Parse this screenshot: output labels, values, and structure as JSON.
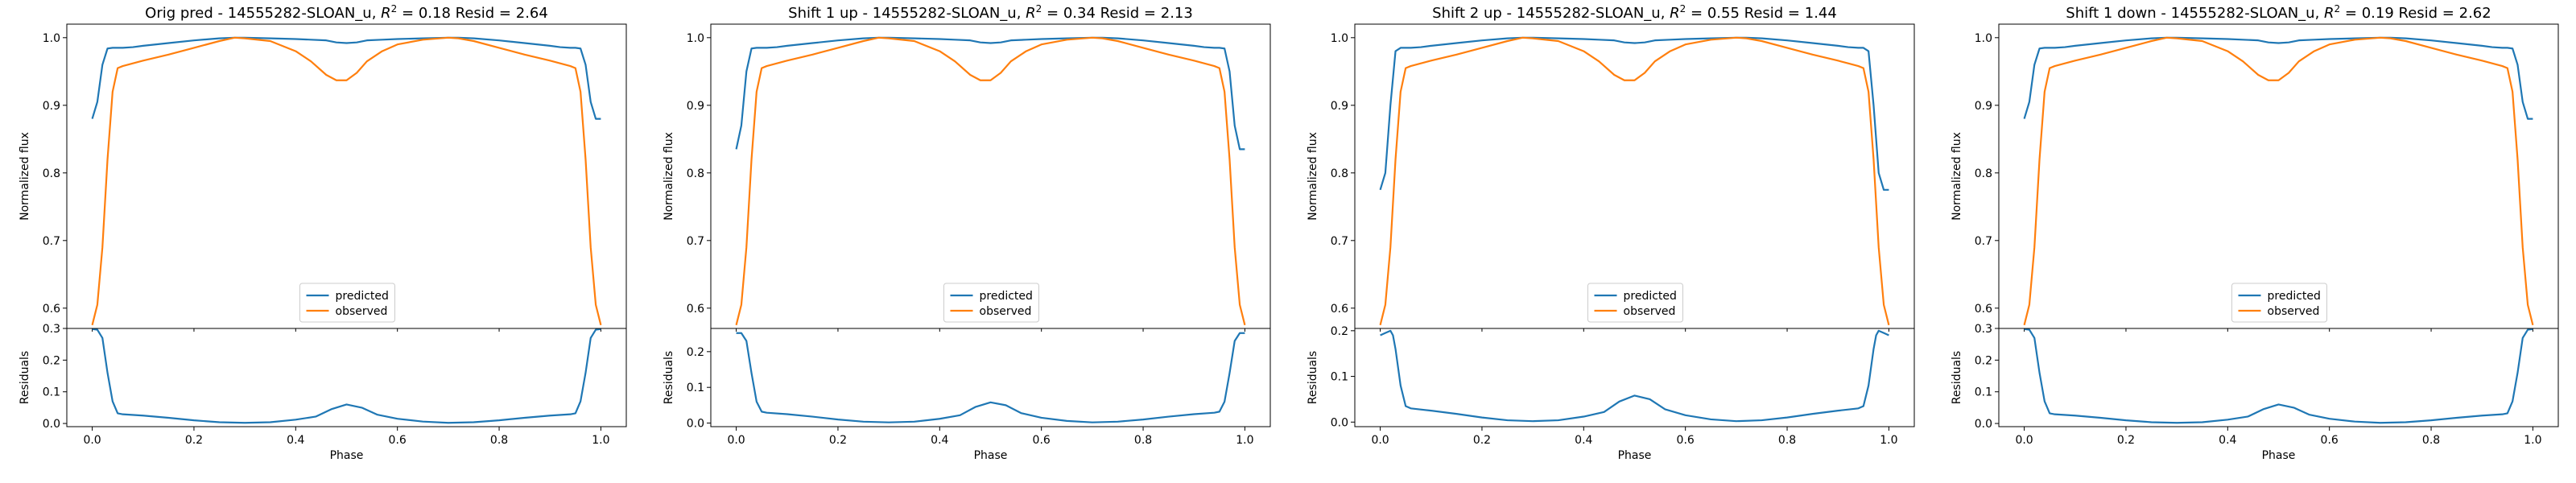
{
  "chart_data": [
    {
      "type": "line",
      "title": "Orig pred - 14555282-SLOAN_u, $R^2 = 0.18$ Resid = 2.64",
      "title_parts": {
        "pre": "Orig pred - 14555282-SLOAN_u, ",
        "r": "R",
        "sup": "2",
        "post": " = 0.18 Resid = 2.64"
      },
      "ylabel": "Normalized flux",
      "ylim": [
        0.57,
        1.02
      ],
      "yticks": [
        0.6,
        0.7,
        0.8,
        0.9,
        1.0
      ],
      "ytick_labels": [
        "0.6",
        "0.7",
        "0.8",
        "0.9",
        "1.0"
      ],
      "x": [
        0.0,
        0.01,
        0.02,
        0.03,
        0.04,
        0.05,
        0.06,
        0.08,
        0.1,
        0.15,
        0.2,
        0.25,
        0.28,
        0.3,
        0.35,
        0.4,
        0.43,
        0.46,
        0.48,
        0.5,
        0.52,
        0.54,
        0.57,
        0.6,
        0.65,
        0.7,
        0.72,
        0.75,
        0.8,
        0.85,
        0.9,
        0.92,
        0.94,
        0.95,
        0.96,
        0.97,
        0.98,
        0.99,
        1.0
      ],
      "series": [
        {
          "name": "predicted",
          "color": "#1f77b4",
          "values": [
            0.88,
            0.905,
            0.96,
            0.984,
            0.985,
            0.985,
            0.985,
            0.986,
            0.988,
            0.992,
            0.996,
            0.999,
            1.0,
            1.0,
            0.999,
            0.998,
            0.997,
            0.996,
            0.993,
            0.992,
            0.993,
            0.996,
            0.997,
            0.998,
            0.999,
            1.0,
            1.0,
            0.999,
            0.996,
            0.992,
            0.988,
            0.986,
            0.985,
            0.985,
            0.984,
            0.96,
            0.905,
            0.88,
            0.88
          ]
        },
        {
          "name": "observed",
          "color": "#ff7f0e",
          "values": [
            0.575,
            0.605,
            0.69,
            0.82,
            0.92,
            0.955,
            0.958,
            0.962,
            0.966,
            0.975,
            0.985,
            0.995,
            1.0,
            0.999,
            0.995,
            0.98,
            0.965,
            0.945,
            0.937,
            0.937,
            0.948,
            0.965,
            0.98,
            0.99,
            0.997,
            1.0,
            0.999,
            0.995,
            0.985,
            0.975,
            0.966,
            0.962,
            0.958,
            0.955,
            0.92,
            0.82,
            0.69,
            0.605,
            0.575
          ]
        }
      ],
      "legend_position": "lower center",
      "residuals": {
        "ylabel": "Residuals",
        "xlabel": "Phase",
        "ylim": [
          -0.01,
          0.3
        ],
        "yticks": [
          0.0,
          0.1,
          0.2,
          0.3
        ],
        "ytick_labels": [
          "0.0",
          "0.1",
          "0.2",
          "0.3"
        ],
        "xticks": [
          0.0,
          0.2,
          0.4,
          0.6,
          0.8,
          1.0
        ],
        "xtick_labels": [
          "0.0",
          "0.2",
          "0.4",
          "0.6",
          "0.8",
          "1.0"
        ],
        "color": "#1f77b4",
        "x": [
          0.0,
          0.01,
          0.02,
          0.03,
          0.04,
          0.05,
          0.06,
          0.1,
          0.15,
          0.2,
          0.25,
          0.3,
          0.35,
          0.4,
          0.44,
          0.47,
          0.5,
          0.53,
          0.56,
          0.6,
          0.65,
          0.7,
          0.75,
          0.8,
          0.85,
          0.9,
          0.94,
          0.95,
          0.96,
          0.97,
          0.98,
          0.99,
          1.0
        ],
        "values": [
          0.298,
          0.296,
          0.27,
          0.16,
          0.07,
          0.032,
          0.029,
          0.025,
          0.018,
          0.01,
          0.004,
          0.002,
          0.004,
          0.012,
          0.022,
          0.045,
          0.06,
          0.05,
          0.028,
          0.015,
          0.006,
          0.002,
          0.004,
          0.01,
          0.018,
          0.025,
          0.029,
          0.032,
          0.07,
          0.16,
          0.27,
          0.296,
          0.298
        ]
      }
    },
    {
      "type": "line",
      "title": "Shift 1 up - 14555282-SLOAN_u, $R^2 = 0.34$ Resid = 2.13",
      "title_parts": {
        "pre": "Shift 1 up - 14555282-SLOAN_u, ",
        "r": "R",
        "sup": "2",
        "post": " = 0.34 Resid = 2.13"
      },
      "ylabel": "Normalized flux",
      "ylim": [
        0.57,
        1.02
      ],
      "yticks": [
        0.6,
        0.7,
        0.8,
        0.9,
        1.0
      ],
      "ytick_labels": [
        "0.6",
        "0.7",
        "0.8",
        "0.9",
        "1.0"
      ],
      "x": [
        0.0,
        0.01,
        0.02,
        0.03,
        0.04,
        0.05,
        0.06,
        0.08,
        0.1,
        0.15,
        0.2,
        0.25,
        0.28,
        0.3,
        0.35,
        0.4,
        0.43,
        0.46,
        0.48,
        0.5,
        0.52,
        0.54,
        0.57,
        0.6,
        0.65,
        0.7,
        0.72,
        0.75,
        0.8,
        0.85,
        0.9,
        0.92,
        0.94,
        0.95,
        0.96,
        0.97,
        0.98,
        0.99,
        1.0
      ],
      "series": [
        {
          "name": "predicted",
          "color": "#1f77b4",
          "values": [
            0.835,
            0.87,
            0.95,
            0.984,
            0.985,
            0.985,
            0.985,
            0.986,
            0.988,
            0.992,
            0.996,
            0.999,
            1.0,
            1.0,
            0.999,
            0.998,
            0.997,
            0.996,
            0.993,
            0.992,
            0.993,
            0.996,
            0.997,
            0.998,
            0.999,
            1.0,
            1.0,
            0.999,
            0.996,
            0.992,
            0.988,
            0.986,
            0.985,
            0.985,
            0.984,
            0.95,
            0.87,
            0.835,
            0.835
          ]
        },
        {
          "name": "observed",
          "color": "#ff7f0e",
          "values": [
            0.575,
            0.605,
            0.69,
            0.82,
            0.92,
            0.955,
            0.958,
            0.962,
            0.966,
            0.975,
            0.985,
            0.995,
            1.0,
            0.999,
            0.995,
            0.98,
            0.965,
            0.945,
            0.937,
            0.937,
            0.948,
            0.965,
            0.98,
            0.99,
            0.997,
            1.0,
            0.999,
            0.995,
            0.985,
            0.975,
            0.966,
            0.962,
            0.958,
            0.955,
            0.92,
            0.82,
            0.69,
            0.605,
            0.575
          ]
        }
      ],
      "legend_position": "lower center",
      "residuals": {
        "ylabel": "Residuals",
        "xlabel": "Phase",
        "ylim": [
          -0.01,
          0.265
        ],
        "yticks": [
          0.0,
          0.1,
          0.2
        ],
        "ytick_labels": [
          "0.0",
          "0.1",
          "0.2"
        ],
        "xticks": [
          0.0,
          0.2,
          0.4,
          0.6,
          0.8,
          1.0
        ],
        "xtick_labels": [
          "0.0",
          "0.2",
          "0.4",
          "0.6",
          "0.8",
          "1.0"
        ],
        "color": "#1f77b4",
        "x": [
          0.0,
          0.01,
          0.02,
          0.03,
          0.04,
          0.05,
          0.06,
          0.1,
          0.15,
          0.2,
          0.25,
          0.3,
          0.35,
          0.4,
          0.44,
          0.47,
          0.5,
          0.53,
          0.56,
          0.6,
          0.65,
          0.7,
          0.75,
          0.8,
          0.85,
          0.9,
          0.94,
          0.95,
          0.96,
          0.97,
          0.98,
          0.99,
          1.0
        ],
        "values": [
          0.252,
          0.252,
          0.23,
          0.14,
          0.06,
          0.032,
          0.029,
          0.025,
          0.018,
          0.01,
          0.004,
          0.002,
          0.004,
          0.012,
          0.022,
          0.045,
          0.058,
          0.05,
          0.028,
          0.015,
          0.006,
          0.002,
          0.004,
          0.01,
          0.018,
          0.025,
          0.029,
          0.032,
          0.06,
          0.14,
          0.23,
          0.252,
          0.252
        ]
      }
    },
    {
      "type": "line",
      "title": "Shift 2 up - 14555282-SLOAN_u, $R^2 = 0.55$ Resid = 1.44",
      "title_parts": {
        "pre": "Shift 2 up - 14555282-SLOAN_u, ",
        "r": "R",
        "sup": "2",
        "post": " = 0.55 Resid = 1.44"
      },
      "ylabel": "Normalized flux",
      "ylim": [
        0.57,
        1.02
      ],
      "yticks": [
        0.6,
        0.7,
        0.8,
        0.9,
        1.0
      ],
      "ytick_labels": [
        "0.6",
        "0.7",
        "0.8",
        "0.9",
        "1.0"
      ],
      "x": [
        0.0,
        0.01,
        0.02,
        0.03,
        0.04,
        0.05,
        0.06,
        0.08,
        0.1,
        0.15,
        0.2,
        0.25,
        0.28,
        0.3,
        0.35,
        0.4,
        0.43,
        0.46,
        0.48,
        0.5,
        0.52,
        0.54,
        0.57,
        0.6,
        0.65,
        0.7,
        0.72,
        0.75,
        0.8,
        0.85,
        0.9,
        0.92,
        0.94,
        0.95,
        0.96,
        0.97,
        0.98,
        0.99,
        1.0
      ],
      "series": [
        {
          "name": "predicted",
          "color": "#1f77b4",
          "values": [
            0.775,
            0.8,
            0.9,
            0.98,
            0.985,
            0.985,
            0.985,
            0.986,
            0.988,
            0.992,
            0.996,
            0.999,
            1.0,
            1.0,
            0.999,
            0.998,
            0.997,
            0.996,
            0.993,
            0.992,
            0.993,
            0.996,
            0.997,
            0.998,
            0.999,
            1.0,
            1.0,
            0.999,
            0.996,
            0.992,
            0.988,
            0.986,
            0.985,
            0.985,
            0.98,
            0.9,
            0.8,
            0.775,
            0.775
          ]
        },
        {
          "name": "observed",
          "color": "#ff7f0e",
          "values": [
            0.575,
            0.605,
            0.69,
            0.82,
            0.92,
            0.955,
            0.958,
            0.962,
            0.966,
            0.975,
            0.985,
            0.995,
            1.0,
            0.999,
            0.995,
            0.98,
            0.965,
            0.945,
            0.937,
            0.937,
            0.948,
            0.965,
            0.98,
            0.99,
            0.997,
            1.0,
            0.999,
            0.995,
            0.985,
            0.975,
            0.966,
            0.962,
            0.958,
            0.955,
            0.92,
            0.82,
            0.69,
            0.605,
            0.575
          ]
        }
      ],
      "legend_position": "lower center",
      "residuals": {
        "ylabel": "Residuals",
        "xlabel": "Phase",
        "ylim": [
          -0.01,
          0.205
        ],
        "yticks": [
          0.0,
          0.1,
          0.2
        ],
        "ytick_labels": [
          "0.0",
          "0.1",
          "0.2"
        ],
        "xticks": [
          0.0,
          0.2,
          0.4,
          0.6,
          0.8,
          1.0
        ],
        "xtick_labels": [
          "0.0",
          "0.2",
          "0.4",
          "0.6",
          "0.8",
          "1.0"
        ],
        "color": "#1f77b4",
        "x": [
          0.0,
          0.01,
          0.02,
          0.025,
          0.03,
          0.04,
          0.05,
          0.06,
          0.1,
          0.15,
          0.2,
          0.25,
          0.3,
          0.35,
          0.4,
          0.44,
          0.47,
          0.5,
          0.53,
          0.56,
          0.6,
          0.65,
          0.7,
          0.75,
          0.8,
          0.85,
          0.9,
          0.94,
          0.95,
          0.96,
          0.97,
          0.975,
          0.98,
          0.99,
          1.0
        ],
        "values": [
          0.19,
          0.195,
          0.2,
          0.19,
          0.16,
          0.08,
          0.035,
          0.03,
          0.025,
          0.018,
          0.01,
          0.004,
          0.002,
          0.004,
          0.012,
          0.022,
          0.045,
          0.058,
          0.05,
          0.028,
          0.015,
          0.006,
          0.002,
          0.004,
          0.01,
          0.018,
          0.025,
          0.03,
          0.035,
          0.08,
          0.16,
          0.19,
          0.2,
          0.195,
          0.19
        ]
      }
    },
    {
      "type": "line",
      "title": "Shift 1 down - 14555282-SLOAN_u, $R^2 = 0.19$ Resid = 2.62",
      "title_parts": {
        "pre": "Shift 1 down - 14555282-SLOAN_u, ",
        "r": "R",
        "sup": "2",
        "post": " = 0.19 Resid = 2.62"
      },
      "ylabel": "Normalized flux",
      "ylim": [
        0.57,
        1.02
      ],
      "yticks": [
        0.6,
        0.7,
        0.8,
        0.9,
        1.0
      ],
      "ytick_labels": [
        "0.6",
        "0.7",
        "0.8",
        "0.9",
        "1.0"
      ],
      "x": [
        0.0,
        0.01,
        0.02,
        0.03,
        0.04,
        0.05,
        0.06,
        0.08,
        0.1,
        0.15,
        0.2,
        0.25,
        0.28,
        0.3,
        0.35,
        0.4,
        0.43,
        0.46,
        0.48,
        0.5,
        0.52,
        0.54,
        0.57,
        0.6,
        0.65,
        0.7,
        0.72,
        0.75,
        0.8,
        0.85,
        0.9,
        0.92,
        0.94,
        0.95,
        0.96,
        0.97,
        0.98,
        0.99,
        1.0
      ],
      "series": [
        {
          "name": "predicted",
          "color": "#1f77b4",
          "values": [
            0.88,
            0.905,
            0.96,
            0.984,
            0.985,
            0.985,
            0.985,
            0.986,
            0.988,
            0.992,
            0.996,
            0.999,
            1.0,
            1.0,
            0.999,
            0.998,
            0.997,
            0.996,
            0.993,
            0.992,
            0.993,
            0.996,
            0.997,
            0.998,
            0.999,
            1.0,
            1.0,
            0.999,
            0.996,
            0.992,
            0.988,
            0.986,
            0.985,
            0.985,
            0.984,
            0.96,
            0.905,
            0.88,
            0.88
          ]
        },
        {
          "name": "observed",
          "color": "#ff7f0e",
          "values": [
            0.575,
            0.605,
            0.69,
            0.82,
            0.92,
            0.955,
            0.958,
            0.962,
            0.966,
            0.975,
            0.985,
            0.995,
            1.0,
            0.999,
            0.995,
            0.98,
            0.965,
            0.945,
            0.937,
            0.937,
            0.948,
            0.965,
            0.98,
            0.99,
            0.997,
            1.0,
            0.999,
            0.995,
            0.985,
            0.975,
            0.966,
            0.962,
            0.958,
            0.955,
            0.92,
            0.82,
            0.69,
            0.605,
            0.575
          ]
        }
      ],
      "legend_position": "lower center",
      "residuals": {
        "ylabel": "Residuals",
        "xlabel": "Phase",
        "ylim": [
          -0.01,
          0.3
        ],
        "yticks": [
          0.0,
          0.1,
          0.2,
          0.3
        ],
        "ytick_labels": [
          "0.0",
          "0.1",
          "0.2",
          "0.3"
        ],
        "xticks": [
          0.0,
          0.2,
          0.4,
          0.6,
          0.8,
          1.0
        ],
        "xtick_labels": [
          "0.0",
          "0.2",
          "0.4",
          "0.6",
          "0.8",
          "1.0"
        ],
        "color": "#1f77b4",
        "x": [
          0.0,
          0.01,
          0.02,
          0.03,
          0.04,
          0.05,
          0.06,
          0.1,
          0.15,
          0.2,
          0.25,
          0.3,
          0.35,
          0.4,
          0.44,
          0.47,
          0.5,
          0.53,
          0.56,
          0.6,
          0.65,
          0.7,
          0.75,
          0.8,
          0.85,
          0.9,
          0.94,
          0.95,
          0.96,
          0.97,
          0.98,
          0.99,
          1.0
        ],
        "values": [
          0.298,
          0.296,
          0.27,
          0.16,
          0.07,
          0.032,
          0.029,
          0.025,
          0.018,
          0.01,
          0.004,
          0.002,
          0.004,
          0.012,
          0.022,
          0.045,
          0.06,
          0.05,
          0.028,
          0.015,
          0.006,
          0.002,
          0.004,
          0.01,
          0.018,
          0.025,
          0.029,
          0.032,
          0.07,
          0.16,
          0.27,
          0.296,
          0.298
        ]
      }
    }
  ]
}
